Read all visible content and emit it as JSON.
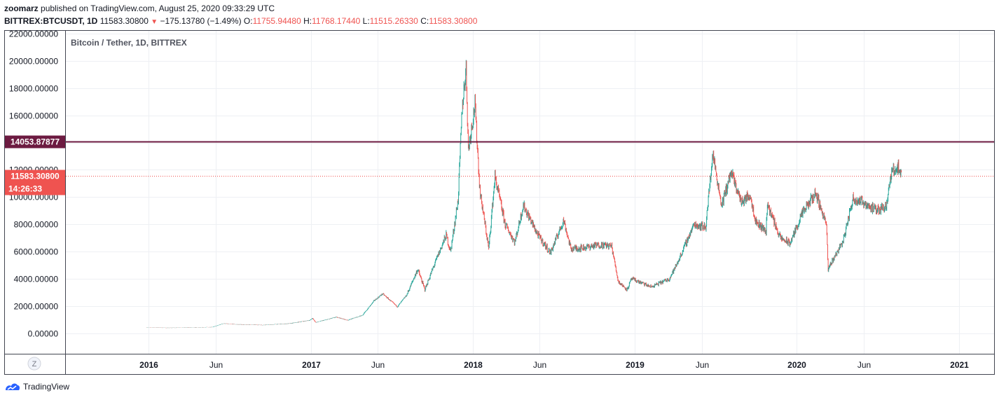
{
  "header": {
    "user": "zoomarz",
    "published_text": "published on TradingView.com, August 25, 2020 09:33:29 UTC",
    "symbol": "BITTREX:BTCUSDT, 1D",
    "last": "11583.30800",
    "change_arrow": "▼",
    "change": "−175.13780 (−1.49%)",
    "o_label": "O:",
    "o_value": "11755.94480",
    "h_label": "H:",
    "h_value": "11768.17440",
    "l_label": "L:",
    "l_value": "11515.26330",
    "c_label": "C:",
    "c_value": "11583.30800"
  },
  "legend_title": "Bitcoin / Tether, 1D, BITTREX",
  "zoom_label": "Z",
  "footer": {
    "brand": "TradingView",
    "logo_icon": "tradingview-logo-icon"
  },
  "colors": {
    "up": "#26a69a",
    "down": "#ef5350",
    "horizontal_line": "#6d1b41",
    "last_price": "#ef5350"
  },
  "badges": {
    "horizontal_line_value": "14053.87877",
    "last_price_value": "11583.30800",
    "countdown": "14:26:33"
  },
  "chart_data": {
    "type": "candlestick",
    "y_ticks": [
      "22000.00000",
      "20000.00000",
      "18000.00000",
      "16000.00000",
      "14000.00000",
      "12000.00000",
      "10000.00000",
      "8000.00000",
      "6000.00000",
      "4000.00000",
      "2000.00000",
      "0.00000"
    ],
    "x_ticks": [
      "2016",
      "Jun",
      "2017",
      "Jun",
      "2018",
      "Jun",
      "2019",
      "Jun",
      "2020",
      "Jun",
      "2021"
    ],
    "ylim": [
      -1500,
      22200
    ],
    "xlim": [
      "2015-06-29",
      "2021-03-21"
    ],
    "horizontal_line": 14053.87877,
    "last_price": 11583.308,
    "series": [
      {
        "date": "2015-12-28",
        "close": 430
      },
      {
        "date": "2016-02-15",
        "close": 400
      },
      {
        "date": "2016-04-15",
        "close": 430
      },
      {
        "date": "2016-05-25",
        "close": 460
      },
      {
        "date": "2016-06-18",
        "close": 720
      },
      {
        "date": "2016-07-15",
        "close": 660
      },
      {
        "date": "2016-09-15",
        "close": 610
      },
      {
        "date": "2016-11-15",
        "close": 720
      },
      {
        "date": "2016-12-30",
        "close": 960
      },
      {
        "date": "2017-01-05",
        "close": 1100
      },
      {
        "date": "2017-01-12",
        "close": 800
      },
      {
        "date": "2017-02-28",
        "close": 1190
      },
      {
        "date": "2017-03-25",
        "close": 960
      },
      {
        "date": "2017-04-28",
        "close": 1340
      },
      {
        "date": "2017-05-24",
        "close": 2400
      },
      {
        "date": "2017-06-12",
        "close": 2900
      },
      {
        "date": "2017-07-15",
        "close": 1950
      },
      {
        "date": "2017-08-05",
        "close": 2800
      },
      {
        "date": "2017-08-30",
        "close": 4700
      },
      {
        "date": "2017-09-15",
        "close": 3200
      },
      {
        "date": "2017-10-12",
        "close": 5500
      },
      {
        "date": "2017-11-02",
        "close": 7200
      },
      {
        "date": "2017-11-12",
        "close": 6000
      },
      {
        "date": "2017-11-29",
        "close": 9800
      },
      {
        "date": "2017-12-08",
        "close": 16500
      },
      {
        "date": "2017-12-17",
        "close": 19500
      },
      {
        "date": "2017-12-22",
        "close": 13500
      },
      {
        "date": "2018-01-06",
        "close": 16800
      },
      {
        "date": "2018-01-17",
        "close": 10500
      },
      {
        "date": "2018-02-06",
        "close": 6200
      },
      {
        "date": "2018-02-20",
        "close": 11500
      },
      {
        "date": "2018-03-15",
        "close": 8000
      },
      {
        "date": "2018-04-06",
        "close": 6700
      },
      {
        "date": "2018-04-25",
        "close": 9400
      },
      {
        "date": "2018-05-28",
        "close": 7200
      },
      {
        "date": "2018-06-25",
        "close": 5900
      },
      {
        "date": "2018-07-25",
        "close": 8300
      },
      {
        "date": "2018-08-10",
        "close": 6200
      },
      {
        "date": "2018-09-10",
        "close": 6300
      },
      {
        "date": "2018-10-15",
        "close": 6500
      },
      {
        "date": "2018-11-10",
        "close": 6400
      },
      {
        "date": "2018-11-25",
        "close": 3800
      },
      {
        "date": "2018-12-15",
        "close": 3200
      },
      {
        "date": "2018-12-25",
        "close": 4000
      },
      {
        "date": "2019-02-07",
        "close": 3400
      },
      {
        "date": "2019-03-20",
        "close": 4000
      },
      {
        "date": "2019-04-05",
        "close": 5000
      },
      {
        "date": "2019-05-15",
        "close": 8000
      },
      {
        "date": "2019-06-10",
        "close": 7800
      },
      {
        "date": "2019-06-26",
        "close": 13200
      },
      {
        "date": "2019-07-16",
        "close": 9400
      },
      {
        "date": "2019-08-06",
        "close": 11800
      },
      {
        "date": "2019-08-30",
        "close": 9600
      },
      {
        "date": "2019-09-18",
        "close": 10200
      },
      {
        "date": "2019-10-01",
        "close": 8200
      },
      {
        "date": "2019-10-24",
        "close": 7500
      },
      {
        "date": "2019-10-27",
        "close": 9500
      },
      {
        "date": "2019-11-25",
        "close": 7000
      },
      {
        "date": "2019-12-17",
        "close": 6600
      },
      {
        "date": "2020-01-14",
        "close": 8800
      },
      {
        "date": "2020-02-13",
        "close": 10300
      },
      {
        "date": "2020-03-08",
        "close": 8000
      },
      {
        "date": "2020-03-12",
        "close": 4600
      },
      {
        "date": "2020-03-16",
        "close": 5000
      },
      {
        "date": "2020-04-15",
        "close": 6800
      },
      {
        "date": "2020-05-07",
        "close": 9900
      },
      {
        "date": "2020-06-01",
        "close": 9600
      },
      {
        "date": "2020-06-28",
        "close": 9000
      },
      {
        "date": "2020-07-21",
        "close": 9400
      },
      {
        "date": "2020-08-02",
        "close": 11800
      },
      {
        "date": "2020-08-17",
        "close": 12200
      },
      {
        "date": "2020-08-24",
        "close": 11583
      }
    ]
  }
}
